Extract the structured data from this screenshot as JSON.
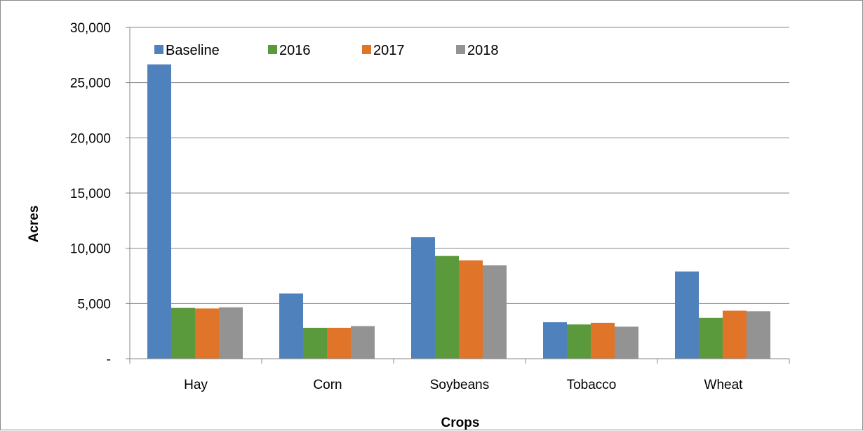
{
  "chart_data": {
    "type": "bar",
    "title": "",
    "xlabel": "Crops",
    "ylabel": "Acres",
    "categories": [
      "Hay",
      "Corn",
      "Soybeans",
      "Tobacco",
      "Wheat"
    ],
    "series": [
      {
        "name": "Baseline",
        "color": "#4f81bd",
        "values": [
          26650,
          5900,
          11000,
          3300,
          7900
        ]
      },
      {
        "name": "2016",
        "color": "#5b9a3c",
        "values": [
          4600,
          2800,
          9300,
          3100,
          3700
        ]
      },
      {
        "name": "2017",
        "color": "#e07428",
        "values": [
          4550,
          2800,
          8900,
          3250,
          4350
        ]
      },
      {
        "name": "2018",
        "color": "#939393",
        "values": [
          4650,
          2950,
          8450,
          2900,
          4300
        ]
      }
    ],
    "ylim": [
      0,
      30000
    ],
    "yticks": [
      0,
      5000,
      10000,
      15000,
      20000,
      25000,
      30000
    ],
    "ytick_labels": [
      "-",
      "5,000",
      "10,000",
      "15,000",
      "20,000",
      "25,000",
      "30,000"
    ],
    "grid": true,
    "legend_position": "top-left"
  }
}
